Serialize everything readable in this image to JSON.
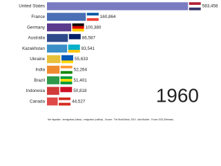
{
  "chart_data": {
    "type": "bar",
    "orientation": "horizontal",
    "categories": [
      "United States",
      "France",
      "Germany",
      "Australia",
      "Kazakhstan",
      "Ukraine",
      "India",
      "Brazil",
      "Indonesia",
      "Canada"
    ],
    "values": [
      583458,
      160864,
      100380,
      86587,
      83541,
      55633,
      52264,
      51401,
      50818,
      44527
    ],
    "value_labels": [
      "583,458",
      "160,864",
      "100,380",
      "86,587",
      "83,541",
      "55,633",
      "52,264",
      "51,401",
      "50,818",
      "44,527"
    ],
    "colors": [
      "#7a7cc2",
      "#4a6fb5",
      "#5b3a8e",
      "#2e4a8b",
      "#3a8fc8",
      "#e8c13a",
      "#f08a2e",
      "#2e9a4a",
      "#d23a3a",
      "#e04848"
    ],
    "xlim": [
      0,
      600000
    ],
    "year": "1960",
    "footer": "Net migration : Immigration (inflow) - emigration (outflow) - Source : The World Bank, 2019 - Alan Builder - Forum 2022 (Release)"
  }
}
